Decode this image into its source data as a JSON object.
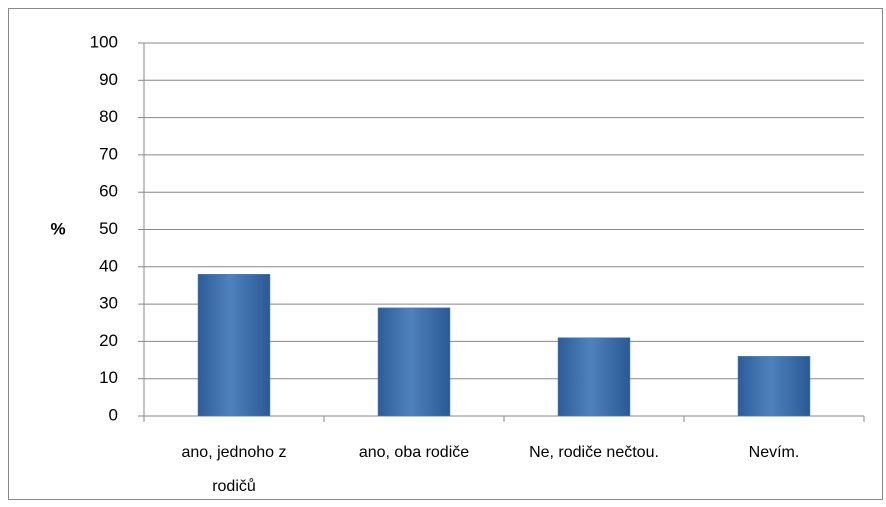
{
  "chart_data": {
    "type": "bar",
    "y_label": "%",
    "categories": [
      "ano, jednoho z rodičů",
      "ano, oba rodiče",
      "Ne, rodiče nečtou.",
      "Nevím."
    ],
    "values": [
      38,
      29,
      21,
      16
    ],
    "color": "#4f81bd",
    "ylim": [
      0,
      100
    ],
    "yticks": [
      0,
      10,
      20,
      30,
      40,
      50,
      60,
      70,
      80,
      90,
      100
    ],
    "grid": true
  }
}
